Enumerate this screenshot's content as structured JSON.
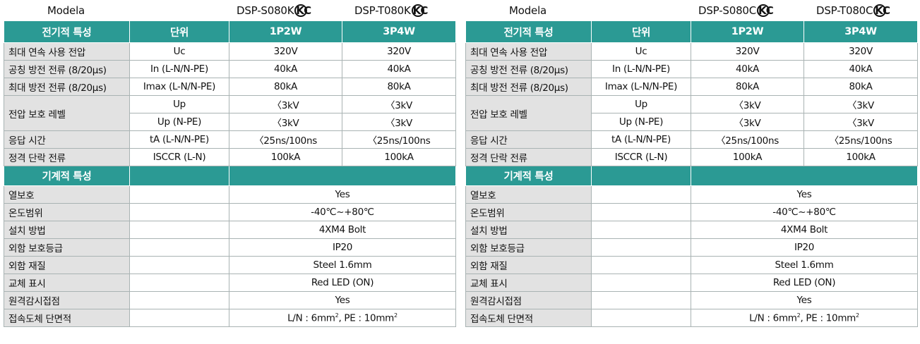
{
  "left": {
    "model_label": "Modela",
    "model_1": "DSP-S080K",
    "model_2": "DSP-T080K",
    "kc_mark": "KC",
    "elec_header": "전기적 특성",
    "unit_header": "단위",
    "col_1": "1P2W",
    "col_2": "3P4W",
    "elec_rows": [
      {
        "label": "최대 연속 사용 전압",
        "unit": "Uc",
        "v1": "320V",
        "v2": "320V"
      },
      {
        "label": "공칭 방전 전류 (8/20μs)",
        "unit": "In (L-N/N-PE)",
        "v1": "40kA",
        "v2": "40kA"
      },
      {
        "label": "최대 방전 전류 (8/20μs)",
        "unit": "Imax (L-N/N-PE)",
        "v1": "80kA",
        "v2": "80kA"
      },
      {
        "label": "전압 보호 레벨",
        "unit": "Up",
        "v1": "〈3kV",
        "v2": "〈3kV"
      },
      {
        "label": "",
        "unit": "Up (N-PE)",
        "v1": "〈3kV",
        "v2": "〈3kV"
      },
      {
        "label": "응답 시간",
        "unit": "tA (L-N/N-PE)",
        "v1": "〈25ns/100ns",
        "v2": "〈25ns/100ns"
      },
      {
        "label": "정격 단락 전류",
        "unit": "ISCCR (L-N)",
        "v1": "100kA",
        "v2": "100kA"
      }
    ],
    "mech_header": "기계적 특성",
    "mech_rows": [
      {
        "label": "열보호",
        "value": "Yes"
      },
      {
        "label": "온도범위",
        "value": "-40℃~+80℃"
      },
      {
        "label": "설치 방법",
        "value": "4XM4 Bolt"
      },
      {
        "label": "외함 보호등급",
        "value": "IP20"
      },
      {
        "label": "외함 재질",
        "value": "Steel 1.6mm"
      },
      {
        "label": "교체 표시",
        "value": "Red LED (ON)"
      },
      {
        "label": "원격감시접점",
        "value": "Yes"
      },
      {
        "label": "접속도체 단면적",
        "value_a": "L/N : 6mm",
        "sup_a": "2",
        "value_b": ",  PE : 10mm",
        "sup_b": "2"
      }
    ]
  },
  "right": {
    "model_label": "Modela",
    "model_1": "DSP-S080C",
    "model_2": "DSP-T080C",
    "kc_mark": "KC",
    "elec_header": "전기적 특성",
    "unit_header": "단위",
    "col_1": "1P2W",
    "col_2": "3P4W",
    "elec_rows": [
      {
        "label": "최대 연속 사용 전압",
        "unit": "Uc",
        "v1": "320V",
        "v2": "320V"
      },
      {
        "label": "공칭 방전 전류 (8/20μs)",
        "unit": "In (L-N/N-PE)",
        "v1": "40kA",
        "v2": "40kA"
      },
      {
        "label": "최대 방전 전류 (8/20μs)",
        "unit": "Imax (L-N/N-PE)",
        "v1": "80kA",
        "v2": "80kA"
      },
      {
        "label": "전압 보호 레벨",
        "unit": "Up",
        "v1": "〈3kV",
        "v2": "〈3kV"
      },
      {
        "label": "",
        "unit": "Up (N-PE)",
        "v1": "〈3kV",
        "v2": "〈3kV"
      },
      {
        "label": "응답 시간",
        "unit": "tA (L-N/N-PE)",
        "v1": "〈25ns/100ns",
        "v2": "〈25ns/100ns"
      },
      {
        "label": "정격 단락 전류",
        "unit": "ISCCR (L-N)",
        "v1": "100kA",
        "v2": "100kA"
      }
    ],
    "mech_header": "기계적 특성",
    "mech_rows": [
      {
        "label": "열보호",
        "value": "Yes"
      },
      {
        "label": "온도범위",
        "value": "-40℃~+80℃"
      },
      {
        "label": "설치 방법",
        "value": "4XM4 Bolt"
      },
      {
        "label": "외함 보호등급",
        "value": "IP20"
      },
      {
        "label": "외함 재질",
        "value": "Steel 1.6mm"
      },
      {
        "label": "교체 표시",
        "value": "Red LED (ON)"
      },
      {
        "label": "원격감시접점",
        "value": "Yes"
      },
      {
        "label": "접속도체 단면적",
        "value_a": "L/N : 6mm",
        "sup_a": "2",
        "value_b": ",  PE : 10mm",
        "sup_b": "2"
      }
    ]
  }
}
